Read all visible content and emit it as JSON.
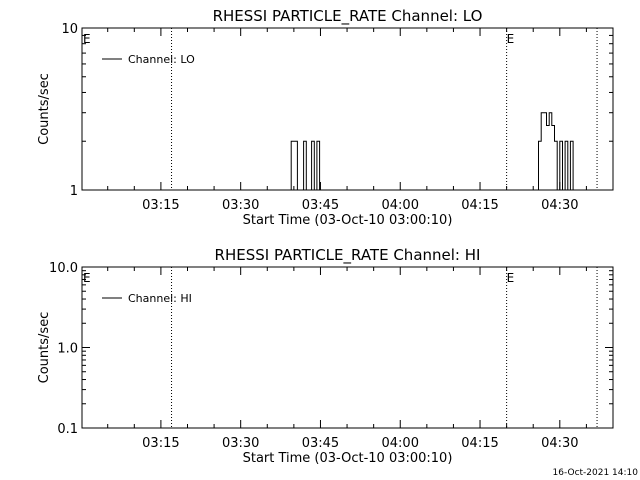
{
  "footer": {
    "timestamp": "16-Oct-2021 14:10"
  },
  "chart_data": [
    {
      "type": "line",
      "title": "RHESSI PARTICLE_RATE Channel: LO",
      "xlabel": "Start Time (03-Oct-10 03:00:10)",
      "ylabel": "Counts/sec",
      "yscale": "log",
      "ylim": [
        1,
        10
      ],
      "ytick_values": [
        1,
        10
      ],
      "ytick_labels": [
        "1",
        "10"
      ],
      "xlim": [
        "03:00:10",
        "04:40:00"
      ],
      "xtick_values": [
        "03:15",
        "03:30",
        "03:45",
        "04:00",
        "04:15",
        "04:30"
      ],
      "xtick_labels": [
        "03:15",
        "03:30",
        "03:45",
        "04:00",
        "04:15",
        "04:30"
      ],
      "legend": {
        "placement": "top-left",
        "entries": [
          "Channel: LO"
        ]
      },
      "event_markers": [
        {
          "time": "03:00:10",
          "label": "E"
        },
        {
          "time": "04:20",
          "label": "E"
        }
      ],
      "dotted_lines": [
        "03:17",
        "04:20",
        "04:37"
      ],
      "series": [
        {
          "name": "Channel: LO",
          "points": [
            [
              "03:00:10",
              1
            ],
            [
              "03:39:30",
              1
            ],
            [
              "03:39:30",
              2
            ],
            [
              "03:40:40",
              2
            ],
            [
              "03:40:40",
              1
            ],
            [
              "03:41:50",
              1
            ],
            [
              "03:41:50",
              2
            ],
            [
              "03:42:20",
              2
            ],
            [
              "03:42:20",
              1
            ],
            [
              "03:43:20",
              1
            ],
            [
              "03:43:20",
              2
            ],
            [
              "03:43:50",
              2
            ],
            [
              "03:43:50",
              1
            ],
            [
              "03:44:20",
              1
            ],
            [
              "03:44:20",
              2
            ],
            [
              "03:44:50",
              2
            ],
            [
              "03:44:50",
              1
            ],
            [
              "04:26:00",
              1
            ],
            [
              "04:26:00",
              2
            ],
            [
              "04:26:30",
              2
            ],
            [
              "04:26:30",
              3
            ],
            [
              "04:27:30",
              3
            ],
            [
              "04:27:30",
              2.5
            ],
            [
              "04:28:00",
              2.5
            ],
            [
              "04:28:00",
              3
            ],
            [
              "04:28:30",
              3
            ],
            [
              "04:28:30",
              2.5
            ],
            [
              "04:29:00",
              2.5
            ],
            [
              "04:29:00",
              2
            ],
            [
              "04:29:30",
              2
            ],
            [
              "04:29:30",
              1
            ],
            [
              "04:30:00",
              1
            ],
            [
              "04:30:00",
              2
            ],
            [
              "04:30:30",
              2
            ],
            [
              "04:30:30",
              1
            ],
            [
              "04:31:00",
              1
            ],
            [
              "04:31:00",
              2
            ],
            [
              "04:31:30",
              2
            ],
            [
              "04:31:30",
              1
            ],
            [
              "04:32:00",
              1
            ],
            [
              "04:32:00",
              2
            ],
            [
              "04:32:30",
              2
            ],
            [
              "04:32:30",
              1
            ],
            [
              "04:40:00",
              1
            ]
          ]
        }
      ]
    },
    {
      "type": "line",
      "title": "RHESSI PARTICLE_RATE Channel: HI",
      "xlabel": "Start Time (03-Oct-10 03:00:10)",
      "ylabel": "Counts/sec",
      "yscale": "log",
      "ylim": [
        0.1,
        10
      ],
      "ytick_values": [
        0.1,
        1,
        10
      ],
      "ytick_labels": [
        "0.1",
        "1.0",
        "10.0"
      ],
      "xlim": [
        "03:00:10",
        "04:40:00"
      ],
      "xtick_values": [
        "03:15",
        "03:30",
        "03:45",
        "04:00",
        "04:15",
        "04:30"
      ],
      "xtick_labels": [
        "03:15",
        "03:30",
        "03:45",
        "04:00",
        "04:15",
        "04:30"
      ],
      "legend": {
        "placement": "top-left",
        "entries": [
          "Channel: HI"
        ]
      },
      "event_markers": [
        {
          "time": "03:00:10",
          "label": "E"
        },
        {
          "time": "04:20",
          "label": "E"
        }
      ],
      "dotted_lines": [
        "03:17",
        "04:20",
        "04:37"
      ],
      "series": [
        {
          "name": "Channel: HI",
          "points": []
        }
      ]
    }
  ]
}
